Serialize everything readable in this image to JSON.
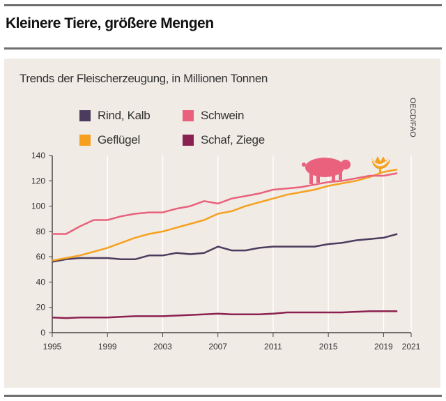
{
  "header": {
    "title": "Kleinere Tiere, größere Mengen"
  },
  "chart_data": {
    "type": "line",
    "title": "Trends der Fleischerzeugung, in Millionen Tonnen",
    "source": "OECD/FAO",
    "x": [
      1995,
      1996,
      1997,
      1998,
      1999,
      2000,
      2001,
      2002,
      2003,
      2004,
      2005,
      2006,
      2007,
      2008,
      2009,
      2010,
      2011,
      2012,
      2013,
      2014,
      2015,
      2016,
      2017,
      2018,
      2019,
      2020
    ],
    "xticks": [
      1995,
      1999,
      2003,
      2007,
      2011,
      2015,
      2019,
      2021
    ],
    "yticks": [
      0,
      20,
      40,
      60,
      80,
      100,
      120,
      140
    ],
    "xlim": [
      1995,
      2021
    ],
    "ylim": [
      0,
      140
    ],
    "grid": "vertical",
    "legend_position": "top-left",
    "series": [
      {
        "name": "Rind, Kalb",
        "color": "#4b3c5e",
        "values": [
          56,
          58,
          59,
          59,
          59,
          58,
          58,
          61,
          61,
          63,
          62,
          63,
          68,
          65,
          65,
          67,
          68,
          68,
          68,
          68,
          70,
          71,
          73,
          74,
          75,
          78
        ]
      },
      {
        "name": "Schwein",
        "color": "#e9617c",
        "values": [
          78,
          78,
          84,
          89,
          89,
          92,
          94,
          95,
          95,
          98,
          100,
          104,
          102,
          106,
          108,
          110,
          113,
          114,
          115,
          117,
          119,
          120,
          122,
          124,
          124,
          126
        ]
      },
      {
        "name": "Geflügel",
        "color": "#f5a11f",
        "values": [
          57,
          59,
          61,
          64,
          67,
          71,
          75,
          78,
          80,
          83,
          86,
          89,
          94,
          96,
          100,
          103,
          106,
          109,
          111,
          113,
          116,
          118,
          120,
          123,
          127,
          129
        ]
      },
      {
        "name": "Schaf, Ziege",
        "color": "#8b2150",
        "values": [
          12,
          11.5,
          12,
          12,
          12,
          12.5,
          13,
          13,
          13,
          13.5,
          14,
          14.5,
          15,
          14.5,
          14.5,
          14.5,
          15,
          16,
          16,
          16,
          16,
          16,
          16.5,
          17,
          17,
          17
        ]
      }
    ],
    "annotations": [
      "pig-icon",
      "chicken-icon"
    ]
  }
}
